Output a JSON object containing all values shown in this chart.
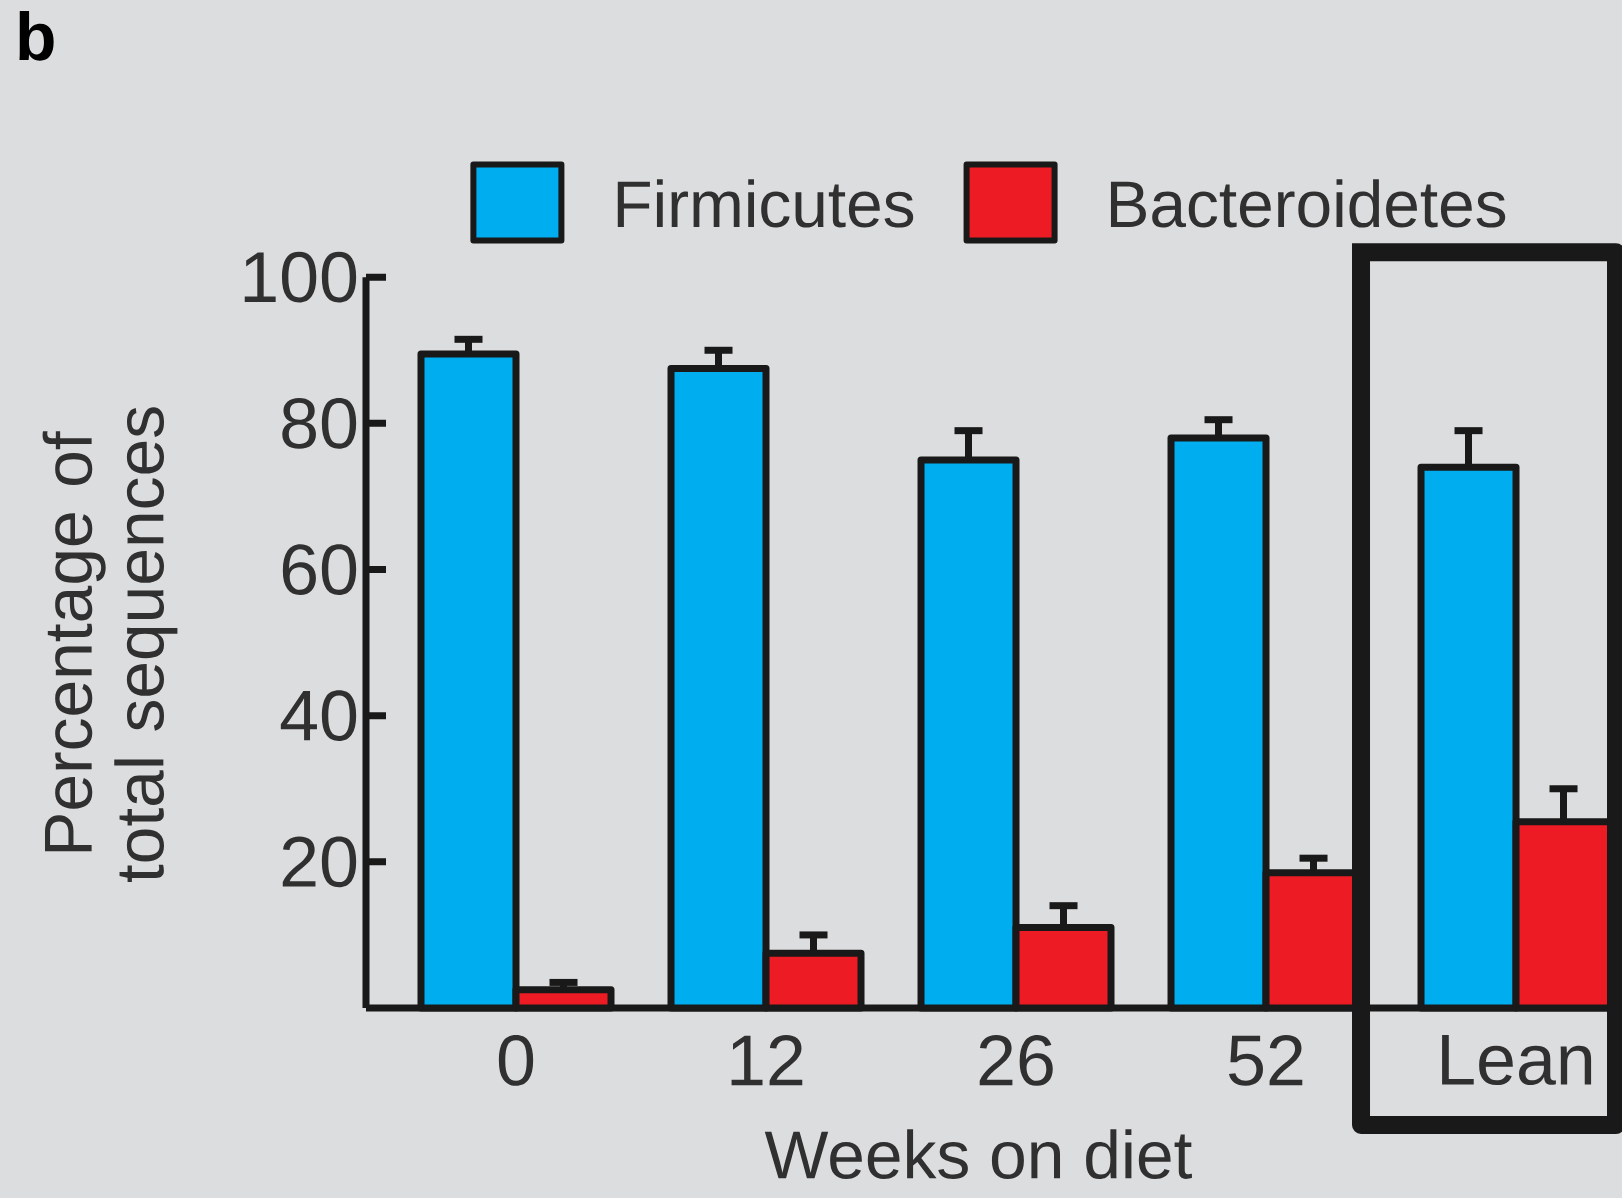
{
  "chart_data": {
    "type": "bar",
    "xlabel": "Weeks on diet",
    "ylabel": "Percentage of total sequences",
    "annotations": [
      "b"
    ],
    "categories": [
      "0",
      "12",
      "26",
      "52",
      "Lean"
    ],
    "series": [
      {
        "name": "Firmicutes",
        "color": "#00aeef",
        "values": [
          89.5,
          87.5,
          75,
          78,
          74
        ],
        "errors": [
          2,
          2.5,
          4,
          2.5,
          5
        ]
      },
      {
        "name": "Bacteroidetes",
        "color": "#ed1c24",
        "values": [
          2.5,
          7.5,
          11,
          18.5,
          25.5
        ],
        "errors": [
          1,
          2.5,
          3,
          2,
          4.5
        ]
      }
    ],
    "ylim": [
      0,
      100
    ],
    "yticks": [
      20,
      40,
      60,
      80,
      100
    ],
    "grid": false,
    "legend": "top"
  }
}
